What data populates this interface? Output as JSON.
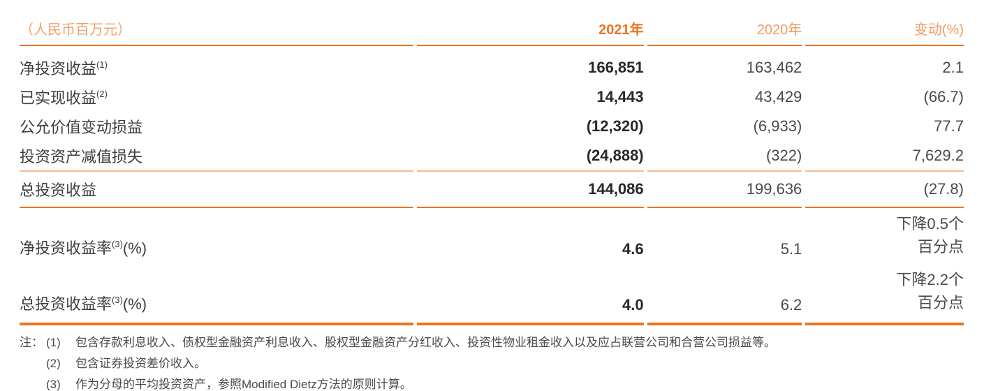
{
  "palette": {
    "accent_orange": "#ED7420",
    "light_orange_text": "#F19C62",
    "light_orange_rule": "#F7BA8F",
    "value_dark": "#282828",
    "value_gray": "#4A4A4A",
    "label_gray": "#3D3D3D"
  },
  "table": {
    "unit_label": "（人民币百万元）",
    "columns": {
      "y2021": "2021年",
      "y2020": "2020年",
      "change": "变动(%)"
    },
    "rows": [
      {
        "label": "净投资收益",
        "sup": "(1)",
        "v2021": "166,851",
        "v2020": "163,462",
        "change": "2.1"
      },
      {
        "label": "已实现收益",
        "sup": "(2)",
        "v2021": "14,443",
        "v2020": "43,429",
        "change": "(66.7)"
      },
      {
        "label": "公允价值变动损益",
        "v2021": "(12,320)",
        "v2020": "(6,933)",
        "change": "77.7"
      },
      {
        "label": "投资资产减值损失",
        "v2021": "(24,888)",
        "v2020": "(322)",
        "change": "7,629.2"
      },
      {
        "label": "总投资收益",
        "v2021": "144,086",
        "v2020": "199,636",
        "change": "(27.8)"
      },
      {
        "label": "净投资收益率",
        "sup": "(3)",
        "label_suffix": "(%)",
        "v2021": "4.6",
        "v2020": "5.1",
        "change_line1": "下降0.5个",
        "change_line2": "百分点"
      },
      {
        "label": "总投资收益率",
        "sup": "(3)",
        "label_suffix": "(%)",
        "v2021": "4.0",
        "v2020": "6.2",
        "change_line1": "下降2.2个",
        "change_line2": "百分点"
      }
    ]
  },
  "notes": {
    "prefix": "注：",
    "items": [
      {
        "num": "(1)",
        "text": "包含存款利息收入、债权型金融资产利息收入、股权型金融资产分红收入、投资性物业租金收入以及应占联营公司和合营公司损益等。"
      },
      {
        "num": "(2)",
        "text": "包含证券投资差价收入。"
      },
      {
        "num": "(3)",
        "text": "作为分母的平均投资资产，参照Modified Dietz方法的原则计算。"
      }
    ]
  }
}
